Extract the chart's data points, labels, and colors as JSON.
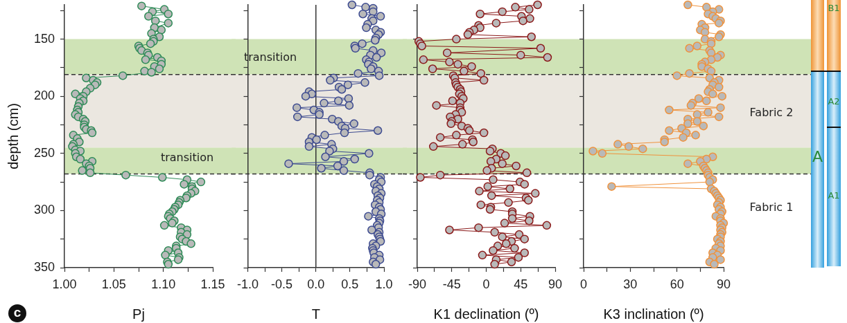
{
  "chart_data": [
    {
      "type": "line",
      "xlabel": "Pj",
      "ylabel": "depth (cm)",
      "marker": "circle",
      "xlim": [
        1,
        1.15
      ],
      "xticks": [
        {
          "value": 1,
          "label": "1.00"
        },
        {
          "value": 1.025,
          "label": null
        },
        1.05,
        {
          "value": 1.075,
          "label": null
        },
        {
          "value": 1.1,
          "label": "1.10"
        },
        {
          "value": 1.125,
          "label": null
        },
        1.15
      ],
      "ylim": [
        350,
        120
      ],
      "yticks": [
        {
          "value": 125,
          "label": null
        },
        150,
        {
          "value": 175,
          "label": null
        },
        200,
        {
          "value": 225,
          "label": null
        },
        250,
        {
          "value": 275,
          "label": null
        },
        300,
        {
          "value": 325,
          "label": null
        },
        350
      ],
      "bands": [
        {
          "axis": "y",
          "from": 150,
          "to": 181,
          "color": "#cfe3b6"
        },
        {
          "axis": "y",
          "from": 181,
          "to": 245,
          "color": "#ebe7e0"
        },
        {
          "axis": "y",
          "from": 245,
          "to": 268,
          "color": "#cfe3b6"
        }
      ],
      "ref_lines": [
        {
          "axis": "y",
          "value": 181,
          "color": "#333333",
          "line_style": "dashed"
        },
        {
          "axis": "y",
          "value": 268,
          "color": "#333333",
          "line_style": "dashed"
        }
      ],
      "annotations": [
        "transition",
        "c"
      ],
      "series": [
        {
          "color": "#2e8b57",
          "x": [
            1.078,
            1.101,
            1.089,
            1.105,
            1.085,
            1.092,
            1.105,
            1.091,
            1.098,
            1.088,
            1.096,
            1.09,
            1.09,
            1.087,
            1.075,
            1.076,
            1.078,
            1.084,
            1.085,
            1.094,
            1.082,
            1.098,
            1.098,
            1.091,
            1.096,
            1.081,
            1.088,
            1.059,
            1.022,
            1.029,
            1.033,
            1.031,
            1.026,
            1.022,
            1.011,
            1.019,
            1.016,
            1.019,
            1.015,
            1.014,
            1.013,
            1.014,
            1.011,
            1.014,
            1.019,
            1.021,
            1.02,
            1.02,
            1.022,
            1.027,
            1.028,
            1.009,
            1.013,
            1.015,
            1.009,
            1.008,
            1.011,
            1.016,
            1.011,
            1.012,
            1.016,
            1.028,
            1.022,
            1.025,
            1.026,
            1.018,
            1.026,
            1.062,
            1.099,
            1.124,
            1.138,
            1.121,
            1.129,
            1.129,
            1.132,
            1.128,
            1.124,
            1.123,
            1.117,
            1.116,
            1.115,
            1.112,
            1.111,
            1.109,
            1.106,
            1.105,
            1.107,
            1.111,
            1.109,
            1.101,
            1.118,
            1.124,
            1.118,
            1.124,
            1.117,
            1.119,
            1.123,
            1.128,
            1.113,
            1.113,
            1.105,
            1.115,
            1.102,
            1.116,
            1.115,
            1.104,
            1.105
          ],
          "values": [
            121,
            124,
            126,
            128,
            130,
            134,
            136,
            140,
            142,
            145,
            148,
            150,
            152,
            154,
            156,
            158,
            160,
            162,
            164,
            166,
            168,
            169,
            172,
            174,
            176,
            178,
            179,
            182,
            184,
            186,
            188,
            190,
            193,
            196,
            198,
            200,
            202,
            204,
            206,
            209,
            212,
            214,
            216,
            218,
            220,
            222,
            225,
            227,
            229,
            230,
            232,
            234,
            237,
            240,
            242,
            244,
            247,
            248,
            250,
            253,
            255,
            257,
            259,
            261,
            263,
            265,
            267,
            269,
            271,
            273,
            275,
            277,
            279,
            281,
            283,
            285,
            287,
            289,
            291,
            293,
            295,
            297,
            299,
            301,
            303,
            305,
            307,
            309,
            311,
            313,
            315,
            317,
            319,
            321,
            323,
            325,
            327,
            329,
            331,
            333,
            335,
            337,
            339,
            341,
            343,
            345,
            347
          ]
        }
      ]
    },
    {
      "type": "line",
      "xlabel": "T",
      "marker": "circle",
      "tick_labels": "x",
      "xlim": [
        -1,
        1
      ],
      "xticks": [
        {
          "value": -1,
          "label": "-1.0"
        },
        {
          "value": -0.75,
          "label": null
        },
        -0.5,
        {
          "value": -0.25,
          "label": null
        },
        {
          "value": 0,
          "label": "0.0"
        },
        {
          "value": 0.25,
          "label": null
        },
        0.5,
        {
          "value": 0.75,
          "label": null
        },
        {
          "value": 1,
          "label": "1.0"
        }
      ],
      "ylim": [
        350,
        120
      ],
      "yticks": [
        {
          "value": 125,
          "label": null
        },
        {
          "value": 150,
          "label": null
        },
        {
          "value": 175,
          "label": null
        },
        {
          "value": 200,
          "label": null
        },
        {
          "value": 225,
          "label": null
        },
        {
          "value": 250,
          "label": null
        },
        {
          "value": 275,
          "label": null
        },
        {
          "value": 300,
          "label": null
        },
        {
          "value": 325,
          "label": null
        },
        {
          "value": 350,
          "label": null
        }
      ],
      "bands": [
        {
          "axis": "y",
          "from": 150,
          "to": 181,
          "color": "#cfe3b6"
        },
        {
          "axis": "y",
          "from": 181,
          "to": 245,
          "color": "#ebe7e0"
        },
        {
          "axis": "y",
          "from": 245,
          "to": 268,
          "color": "#cfe3b6"
        }
      ],
      "ref_lines": [
        {
          "axis": "y",
          "value": 181,
          "color": "#333333",
          "line_style": "dashed"
        },
        {
          "axis": "y",
          "value": 268,
          "color": "#333333",
          "line_style": "dashed"
        },
        {
          "axis": "x",
          "value": 0,
          "color": "#333333",
          "line_style": "solid"
        }
      ],
      "annotations": [
        "transition"
      ],
      "series": [
        {
          "color": "#3c4a90",
          "x": [
            0.53,
            0.73,
            0.84,
            0.84,
            0.69,
            0.95,
            0.82,
            0.84,
            0.76,
            0.74,
            0.88,
            0.95,
            0.92,
            0.88,
            0.87,
            0.68,
            0.57,
            0.58,
            0.84,
            0.96,
            0.8,
            0.89,
            0.74,
            0.78,
            0.77,
            0.84,
            0.81,
            0.92,
            0.62,
            0.93,
            0.26,
            0.21,
            0.72,
            0.47,
            0.34,
            0.38,
            -0.1,
            -0.06,
            -0.15,
            0.48,
            0.33,
            0.12,
            0.49,
            -0.28,
            -0.03,
            0.05,
            0.05,
            -0.27,
            0.24,
            0.33,
            0.56,
            0.38,
            0.43,
            0.91,
            0.42,
            0.13,
            -0.06,
            0.01,
            -0.1,
            0.23,
            -0.1,
            0.25,
            0.2,
            0.78,
            0.14,
            0.57,
            0.41,
            -0.4,
            0.32,
            0.08,
            0.41,
            0.79,
            0.79,
            0.95,
            0.93,
            0.96,
            0.86,
            0.9,
            0.93,
            0.88,
            0.96,
            0.91,
            0.94,
            0.9,
            0.93,
            0.87,
            0.93,
            0.95,
            0.88,
            0.96,
            0.77,
            0.93,
            0.94,
            0.93,
            0.9,
            0.92,
            0.82,
            0.93,
            0.91,
            0.93,
            0.94,
            0.95,
            0.84,
            0.88,
            0.83,
            0.84,
            0.85,
            0.93,
            0.86,
            0.94,
            0.84,
            0.88
          ],
          "values": [
            120,
            122,
            123,
            126,
            128,
            130,
            132,
            134,
            137,
            140,
            142,
            144,
            146,
            149,
            151,
            154,
            156,
            158,
            160,
            162,
            164,
            166,
            168,
            170,
            172,
            174,
            176,
            178,
            180,
            182,
            184,
            186,
            188,
            190,
            192,
            194,
            196,
            198,
            200,
            202,
            204,
            206,
            208,
            210,
            212,
            214,
            216,
            218,
            220,
            222,
            224,
            226,
            228,
            230,
            232,
            234,
            236,
            238,
            240,
            242,
            244,
            246,
            248,
            250,
            253,
            255,
            257,
            259,
            261,
            263,
            265,
            267,
            269,
            271,
            273,
            275,
            277,
            279,
            281,
            283,
            285,
            287,
            289,
            291,
            293,
            295,
            297,
            299,
            301,
            303,
            305,
            307,
            309,
            311,
            313,
            315,
            317,
            319,
            321,
            323,
            325,
            327,
            329,
            331,
            333,
            335,
            337,
            339,
            341,
            343,
            345,
            347
          ]
        }
      ]
    },
    {
      "type": "line",
      "xlabel": "K1 declination (º)",
      "marker": "circle",
      "tick_labels": "x",
      "xlim": [
        -90,
        90
      ],
      "xticks": [
        -90,
        {
          "value": -67.5,
          "label": null
        },
        -45,
        {
          "value": -22.5,
          "label": null
        },
        0,
        {
          "value": 22.5,
          "label": null
        },
        45,
        {
          "value": 67.5,
          "label": null
        },
        90
      ],
      "ylim": [
        350,
        120
      ],
      "yticks": [
        {
          "value": 125,
          "label": null
        },
        {
          "value": 150,
          "label": null
        },
        {
          "value": 175,
          "label": null
        },
        {
          "value": 200,
          "label": null
        },
        {
          "value": 225,
          "label": null
        },
        {
          "value": 250,
          "label": null
        },
        {
          "value": 275,
          "label": null
        },
        {
          "value": 300,
          "label": null
        },
        {
          "value": 325,
          "label": null
        },
        {
          "value": 350,
          "label": null
        }
      ],
      "bands": [
        {
          "axis": "y",
          "from": 150,
          "to": 181,
          "color": "#cfe3b6"
        },
        {
          "axis": "y",
          "from": 181,
          "to": 245,
          "color": "#ebe7e0"
        },
        {
          "axis": "y",
          "from": 245,
          "to": 268,
          "color": "#cfe3b6"
        }
      ],
      "ref_lines": [
        {
          "axis": "y",
          "value": 181,
          "color": "#333333",
          "line_style": "dashed"
        },
        {
          "axis": "y",
          "value": 268,
          "color": "#333333",
          "line_style": "dashed"
        }
      ],
      "series": [
        {
          "color": "#8b1a1a",
          "x": [
            67,
            38,
            56,
            21,
            -8,
            46,
            57,
            48,
            13,
            -10,
            -8,
            -16,
            -22,
            -24,
            59,
            -39,
            -88,
            -86,
            -84,
            71,
            -51,
            45,
            80,
            -82,
            -48,
            -37,
            -19,
            -70,
            -29,
            -7,
            -43,
            -41,
            -3,
            -40,
            -39,
            -37,
            -34,
            -33,
            -35,
            -32,
            -30,
            -44,
            -34,
            -65,
            -34,
            -34,
            -32,
            -40,
            -47,
            -37,
            -45,
            -46,
            -32,
            -24,
            -22,
            -3,
            -39,
            -60,
            -18,
            -17,
            -31,
            -69,
            8,
            5,
            19,
            25,
            13,
            6,
            21,
            39,
            7,
            1,
            53,
            -60,
            -86,
            9,
            44,
            50,
            2,
            31,
            -9,
            64,
            7,
            52,
            55,
            29,
            -7,
            6,
            5,
            34,
            34,
            57,
            34,
            56,
            24,
            79,
            -10,
            -48,
            11,
            43,
            21,
            50,
            33,
            26,
            15,
            37,
            9,
            50,
            -5,
            42,
            13,
            33,
            11
          ],
          "values": [
            120,
            122,
            124,
            126,
            128,
            130,
            132,
            134,
            136,
            138,
            140,
            142,
            144,
            146,
            148,
            150,
            152,
            154,
            156,
            158,
            162,
            164,
            166,
            168,
            170,
            172,
            174,
            176,
            178,
            180,
            182,
            184,
            186,
            188,
            190,
            192,
            194,
            196,
            198,
            200,
            202,
            204,
            206,
            208,
            210,
            212,
            214,
            216,
            218,
            220,
            222,
            224,
            226,
            228,
            230,
            232,
            234,
            236,
            238,
            240,
            242,
            244,
            246,
            248,
            250,
            252,
            255,
            257,
            259,
            261,
            263,
            265,
            267,
            269,
            271,
            273,
            275,
            277,
            279,
            281,
            283,
            285,
            287,
            289,
            291,
            293,
            295,
            297,
            299,
            301,
            303,
            305,
            307,
            309,
            311,
            313,
            315,
            317,
            319,
            321,
            323,
            325,
            327,
            329,
            331,
            333,
            335,
            337,
            339,
            341,
            343,
            345,
            347
          ]
        }
      ]
    },
    {
      "type": "line",
      "xlabel": "K3 inclination (º)",
      "marker": "circle",
      "tick_labels": "x",
      "xlim": [
        0,
        90
      ],
      "xticks": [
        0,
        {
          "value": 15,
          "label": null
        },
        30,
        {
          "value": 45,
          "label": null
        },
        60,
        {
          "value": 75,
          "label": null
        },
        90
      ],
      "ylim": [
        350,
        120
      ],
      "yticks": [
        {
          "value": 125,
          "label": null
        },
        {
          "value": 150,
          "label": null
        },
        {
          "value": 175,
          "label": null
        },
        {
          "value": 200,
          "label": null
        },
        {
          "value": 225,
          "label": null
        },
        {
          "value": 250,
          "label": null
        },
        {
          "value": 275,
          "label": null
        },
        {
          "value": 300,
          "label": null
        },
        {
          "value": 325,
          "label": null
        },
        {
          "value": 350,
          "label": null
        }
      ],
      "bands": [
        {
          "axis": "y",
          "from": 150,
          "to": 181,
          "color": "#cfe3b6"
        },
        {
          "axis": "y",
          "from": 181,
          "to": 245,
          "color": "#ebe7e0"
        },
        {
          "axis": "y",
          "from": 245,
          "to": 268,
          "color": "#cfe3b6"
        }
      ],
      "ref_lines": [
        {
          "axis": "y",
          "value": 181,
          "color": "#333333",
          "line_style": "dashed"
        },
        {
          "axis": "y",
          "value": 268,
          "color": "#333333",
          "line_style": "dashed"
        }
      ],
      "annotations": [
        "Fabric 2",
        "Fabric 1",
        "B1",
        "A2",
        "A",
        "A1"
      ],
      "series": [
        {
          "color": "#f0923c",
          "x": [
            67,
            79,
            87,
            83,
            80,
            83,
            85,
            88,
            87,
            76,
            78,
            75,
            78,
            88,
            87,
            78,
            82,
            82,
            73,
            68,
            81,
            82,
            88,
            86,
            82,
            78,
            76,
            76,
            80,
            82,
            68,
            60,
            81,
            87,
            84,
            83,
            87,
            81,
            80,
            83,
            89,
            74,
            79,
            70,
            69,
            88,
            55,
            80,
            73,
            87,
            67,
            73,
            67,
            77,
            63,
            55,
            66,
            72,
            64,
            52,
            52,
            22,
            29,
            38,
            6,
            12,
            83,
            79,
            75,
            67,
            77,
            78,
            79,
            80,
            80,
            81,
            83,
            81,
            18,
            82,
            84,
            85,
            86,
            87,
            88,
            87,
            86,
            88,
            87,
            89,
            88,
            85,
            88,
            88,
            90,
            88,
            89,
            88,
            89,
            88,
            88,
            86,
            88,
            87,
            88,
            85,
            88,
            83,
            86,
            83,
            88,
            81,
            84
          ],
          "values": [
            120,
            122,
            124,
            126,
            128,
            130,
            132,
            134,
            136,
            137,
            140,
            142,
            144,
            146,
            148,
            150,
            152,
            154,
            156,
            158,
            160,
            162,
            164,
            166,
            168,
            170,
            172,
            174,
            176,
            178,
            180,
            182,
            184,
            186,
            188,
            190,
            192,
            194,
            196,
            198,
            200,
            202,
            204,
            206,
            208,
            210,
            212,
            214,
            216,
            218,
            220,
            222,
            224,
            226,
            228,
            230,
            232,
            234,
            236,
            238,
            240,
            242,
            244,
            246,
            248,
            250,
            253,
            255,
            257,
            259,
            261,
            263,
            265,
            267,
            269,
            271,
            273,
            275,
            279,
            281,
            283,
            285,
            287,
            289,
            291,
            293,
            295,
            297,
            299,
            301,
            303,
            305,
            307,
            309,
            311,
            313,
            315,
            317,
            319,
            321,
            323,
            325,
            327,
            329,
            331,
            333,
            335,
            337,
            339,
            341,
            343,
            345,
            347
          ]
        }
      ]
    }
  ]
}
